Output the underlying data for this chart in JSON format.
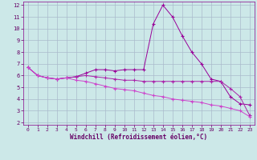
{
  "xlabel": "Windchill (Refroidissement éolien,°C)",
  "background_color": "#cce8e8",
  "grid_color": "#aabbcc",
  "line_color": "#990099",
  "xlim": [
    -0.5,
    23.5
  ],
  "ylim": [
    1.8,
    12.3
  ],
  "xticks": [
    0,
    1,
    2,
    3,
    4,
    5,
    6,
    7,
    8,
    9,
    10,
    11,
    12,
    13,
    14,
    15,
    16,
    17,
    18,
    19,
    20,
    21,
    22,
    23
  ],
  "yticks": [
    2,
    3,
    4,
    5,
    6,
    7,
    8,
    9,
    10,
    11,
    12
  ],
  "line1_x": [
    0,
    1,
    2,
    3,
    4,
    5,
    6,
    7,
    8,
    9,
    10,
    11,
    12,
    13,
    14,
    15,
    16,
    17,
    18,
    19,
    20,
    21,
    22,
    23
  ],
  "line1_y": [
    6.7,
    6.0,
    5.8,
    5.7,
    5.8,
    5.9,
    6.2,
    6.5,
    6.5,
    6.4,
    6.5,
    6.5,
    6.5,
    10.4,
    12.0,
    11.0,
    9.4,
    8.0,
    7.0,
    5.7,
    5.5,
    4.2,
    3.6,
    3.5
  ],
  "line2_x": [
    0,
    1,
    2,
    3,
    4,
    5,
    6,
    7,
    8,
    9,
    10,
    11,
    12,
    13,
    14,
    15,
    16,
    17,
    18,
    19,
    20,
    21,
    22,
    23
  ],
  "line2_y": [
    6.7,
    6.0,
    5.8,
    5.7,
    5.8,
    5.9,
    6.0,
    5.9,
    5.8,
    5.7,
    5.6,
    5.6,
    5.5,
    5.5,
    5.5,
    5.5,
    5.5,
    5.5,
    5.5,
    5.5,
    5.5,
    4.9,
    4.2,
    2.6
  ],
  "line3_x": [
    0,
    1,
    2,
    3,
    4,
    5,
    6,
    7,
    8,
    9,
    10,
    11,
    12,
    13,
    14,
    15,
    16,
    17,
    18,
    19,
    20,
    21,
    22,
    23
  ],
  "line3_y": [
    6.7,
    6.0,
    5.8,
    5.7,
    5.8,
    5.6,
    5.5,
    5.3,
    5.1,
    4.9,
    4.8,
    4.7,
    4.5,
    4.3,
    4.2,
    4.0,
    3.9,
    3.8,
    3.7,
    3.5,
    3.4,
    3.2,
    3.0,
    2.5
  ]
}
